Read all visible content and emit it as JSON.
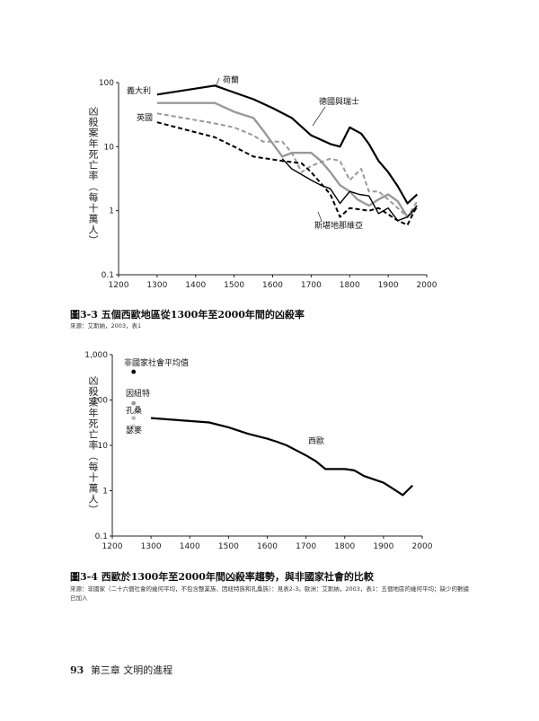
{
  "figure1": {
    "ylabel": "凶殺案年死亡率（每十萬人）",
    "caption": "圖3-3 五個西歐地區從1300年至2000年間的凶殺率",
    "source": "來源：艾斯納，2003，表1",
    "chart_data": {
      "type": "line",
      "xlim": [
        1200,
        2000
      ],
      "ylim": [
        0.1,
        100
      ],
      "yscale": "log",
      "x_ticks": [
        "1200",
        "1300",
        "1400",
        "1500",
        "1600",
        "1700",
        "1800",
        "1900",
        "2000"
      ],
      "y_ticks": [
        "100",
        "10",
        "1",
        "0.1"
      ],
      "series": [
        {
          "name": "荷蘭",
          "style": "solid",
          "color": "#000000",
          "width": 2.2,
          "points": [
            [
              1300,
              65
            ],
            [
              1450,
              90
            ],
            [
              1500,
              70
            ],
            [
              1550,
              55
            ],
            [
              1600,
              40
            ],
            [
              1650,
              28
            ],
            [
              1700,
              15
            ],
            [
              1750,
              11
            ],
            [
              1775,
              10
            ],
            [
              1800,
              20
            ],
            [
              1830,
              16
            ],
            [
              1850,
              11
            ],
            [
              1875,
              6
            ],
            [
              1900,
              4
            ],
            [
              1925,
              2.4
            ],
            [
              1950,
              1.3
            ],
            [
              1975,
              1.8
            ]
          ]
        },
        {
          "name": "義大利",
          "style": "solid",
          "color": "#999999",
          "width": 2.4,
          "points": [
            [
              1300,
              48
            ],
            [
              1450,
              48
            ],
            [
              1500,
              35
            ],
            [
              1550,
              28
            ],
            [
              1575,
              18
            ],
            [
              1625,
              7
            ],
            [
              1650,
              8
            ],
            [
              1700,
              8
            ],
            [
              1725,
              6
            ],
            [
              1750,
              4
            ],
            [
              1775,
              2.5
            ],
            [
              1800,
              2
            ],
            [
              1820,
              1.5
            ],
            [
              1850,
              1.2
            ],
            [
              1875,
              1.5
            ],
            [
              1900,
              1.8
            ],
            [
              1925,
              1.4
            ],
            [
              1950,
              0.8
            ],
            [
              1975,
              1.1
            ]
          ]
        },
        {
          "name": "德國與瑞士",
          "style": "dashed",
          "color": "#999999",
          "width": 2,
          "points": [
            [
              1300,
              33
            ],
            [
              1400,
              26
            ],
            [
              1450,
              23
            ],
            [
              1500,
              20
            ],
            [
              1550,
              15
            ],
            [
              1575,
              12
            ],
            [
              1625,
              12
            ],
            [
              1650,
              8
            ],
            [
              1675,
              4
            ],
            [
              1700,
              5
            ],
            [
              1750,
              6.5
            ],
            [
              1775,
              6
            ],
            [
              1800,
              3
            ],
            [
              1830,
              4.5
            ],
            [
              1850,
              2
            ],
            [
              1875,
              2
            ],
            [
              1900,
              1.5
            ],
            [
              1925,
              1.1
            ],
            [
              1950,
              0.8
            ],
            [
              1975,
              1.4
            ]
          ]
        },
        {
          "name": "英國",
          "style": "dashed",
          "color": "#000000",
          "width": 2,
          "points": [
            [
              1300,
              24
            ],
            [
              1450,
              14
            ],
            [
              1500,
              10
            ],
            [
              1550,
              7
            ],
            [
              1625,
              6
            ],
            [
              1675,
              5.5
            ],
            [
              1700,
              4
            ],
            [
              1750,
              1.8
            ],
            [
              1775,
              0.8
            ],
            [
              1800,
              1.1
            ],
            [
              1850,
              1
            ],
            [
              1875,
              1.1
            ],
            [
              1925,
              0.7
            ],
            [
              1950,
              0.6
            ],
            [
              1975,
              1.2
            ]
          ]
        },
        {
          "name": "斯堪地那維亞",
          "style": "solid",
          "color": "#000000",
          "width": 1.4,
          "points": [
            [
              1625,
              6.5
            ],
            [
              1650,
              4.5
            ],
            [
              1700,
              3
            ],
            [
              1725,
              2.5
            ],
            [
              1750,
              2.2
            ],
            [
              1775,
              1.3
            ],
            [
              1800,
              2
            ],
            [
              1825,
              1.8
            ],
            [
              1850,
              1.7
            ],
            [
              1875,
              0.9
            ],
            [
              1900,
              1.1
            ],
            [
              1925,
              0.7
            ],
            [
              1950,
              0.8
            ],
            [
              1975,
              1.2
            ]
          ]
        }
      ]
    }
  },
  "figure2": {
    "ylabel": "凶殺案年死亡率（每十萬人）",
    "caption": "圖3-4 西歐於1300年至2000年間凶殺率趨勢，與非國家社會的比較",
    "source_line1": "來源：非國家（二十六個社會的幾何平均，不包含整業族、因紐特族和孔桑族）：見表2-3。歐洲：艾斯納，2003，表1：五個地區的幾何平均；缺少的數據",
    "source_line2": "已加入",
    "chart_data": {
      "type": "line",
      "xlim": [
        1200,
        2000
      ],
      "ylim": [
        0.1,
        1000
      ],
      "yscale": "log",
      "x_ticks": [
        "1200",
        "1300",
        "1400",
        "1500",
        "1600",
        "1700",
        "1800",
        "1900",
        "2000"
      ],
      "y_ticks": [
        "1,000",
        "100",
        "10",
        "1",
        "0.1"
      ],
      "series": [
        {
          "name": "西歐",
          "style": "solid",
          "color": "#000000",
          "width": 2.2,
          "points": [
            [
              1300,
              40
            ],
            [
              1450,
              32
            ],
            [
              1500,
              25
            ],
            [
              1550,
              18
            ],
            [
              1600,
              14
            ],
            [
              1625,
              12
            ],
            [
              1650,
              10
            ],
            [
              1700,
              6
            ],
            [
              1725,
              4.5
            ],
            [
              1750,
              3
            ],
            [
              1800,
              3
            ],
            [
              1825,
              2.8
            ],
            [
              1850,
              2.1
            ],
            [
              1900,
              1.5
            ],
            [
              1925,
              1.1
            ],
            [
              1950,
              0.8
            ],
            [
              1975,
              1.3
            ]
          ]
        }
      ],
      "points": [
        {
          "name": "非國家社會平均值",
          "x": 1255,
          "y": 420,
          "color": "#000000"
        },
        {
          "name": "因紐特",
          "x": 1255,
          "y": 85,
          "color": "#999999"
        },
        {
          "name": "孔桑",
          "x": 1255,
          "y": 40,
          "color": "#bbbbbb"
        },
        {
          "name": "瑟麥",
          "x": 1255,
          "y": 27,
          "color": "#dddddd"
        }
      ]
    }
  },
  "footer": {
    "page": "93",
    "chapter": "第三章 文明的進程"
  }
}
